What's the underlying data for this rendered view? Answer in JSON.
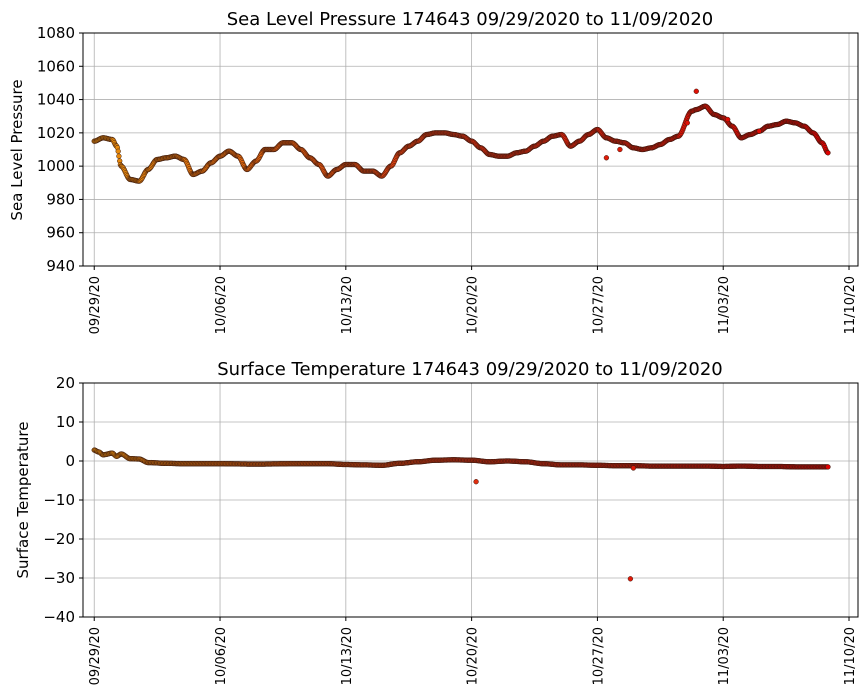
{
  "chart_data": [
    {
      "type": "scatter",
      "title": "Sea Level Pressure 174643  09/29/2020 to 11/09/2020",
      "xlabel": "",
      "ylabel": "Sea Level Pressure",
      "ylim": [
        940,
        1080
      ],
      "yticks": [
        940,
        960,
        980,
        1000,
        1020,
        1040,
        1060,
        1080
      ],
      "xlim": [
        "09/28/20 09:00",
        "11/10/20 12:00"
      ],
      "xtick_labels": [
        "09/29/20",
        "10/06/20",
        "10/13/20",
        "10/20/20",
        "10/27/20",
        "11/03/20",
        "11/10/20"
      ],
      "grid": true,
      "color_gradient": [
        "#e8900c",
        "#e03010",
        "#e00000"
      ],
      "series": [
        {
          "points": [
            [
              "09/29 00:00",
              1015
            ],
            [
              "09/29 12:00",
              1017
            ],
            [
              "09/30 00:00",
              1016
            ],
            [
              "09/30 06:00",
              1012
            ],
            [
              "09/30 12:00",
              1000
            ],
            [
              "10/01 00:00",
              992
            ],
            [
              "10/01 12:00",
              991
            ],
            [
              "10/02 00:00",
              998
            ],
            [
              "10/02 12:00",
              1004
            ],
            [
              "10/03 00:00",
              1005
            ],
            [
              "10/03 12:00",
              1006
            ],
            [
              "10/04 00:00",
              1004
            ],
            [
              "10/04 12:00",
              995
            ],
            [
              "10/05 00:00",
              997
            ],
            [
              "10/05 12:00",
              1002
            ],
            [
              "10/06 00:00",
              1006
            ],
            [
              "10/06 12:00",
              1009
            ],
            [
              "10/07 00:00",
              1006
            ],
            [
              "10/07 12:00",
              998
            ],
            [
              "10/08 00:00",
              1003
            ],
            [
              "10/08 12:00",
              1010
            ],
            [
              "10/09 00:00",
              1010
            ],
            [
              "10/09 12:00",
              1014
            ],
            [
              "10/10 00:00",
              1014
            ],
            [
              "10/10 12:00",
              1010
            ],
            [
              "10/11 00:00",
              1005
            ],
            [
              "10/11 12:00",
              1001
            ],
            [
              "10/12 00:00",
              994
            ],
            [
              "10/12 12:00",
              998
            ],
            [
              "10/13 00:00",
              1001
            ],
            [
              "10/13 12:00",
              1001
            ],
            [
              "10/14 00:00",
              997
            ],
            [
              "10/14 12:00",
              997
            ],
            [
              "10/15 00:00",
              994
            ],
            [
              "10/15 12:00",
              1000
            ],
            [
              "10/16 00:00",
              1008
            ],
            [
              "10/16 12:00",
              1012
            ],
            [
              "10/17 00:00",
              1015
            ],
            [
              "10/17 12:00",
              1019
            ],
            [
              "10/18 00:00",
              1020
            ],
            [
              "10/18 12:00",
              1020
            ],
            [
              "10/19 00:00",
              1019
            ],
            [
              "10/19 12:00",
              1018
            ],
            [
              "10/20 00:00",
              1015
            ],
            [
              "10/20 12:00",
              1011
            ],
            [
              "10/21 00:00",
              1007
            ],
            [
              "10/21 12:00",
              1006
            ],
            [
              "10/22 00:00",
              1006
            ],
            [
              "10/22 12:00",
              1008
            ],
            [
              "10/23 00:00",
              1009
            ],
            [
              "10/23 12:00",
              1012
            ],
            [
              "10/24 00:00",
              1015
            ],
            [
              "10/24 12:00",
              1018
            ],
            [
              "10/25 00:00",
              1019
            ],
            [
              "10/25 12:00",
              1012
            ],
            [
              "10/26 00:00",
              1015
            ],
            [
              "10/26 12:00",
              1019
            ],
            [
              "10/27 00:00",
              1022
            ],
            [
              "10/27 12:00",
              1017
            ],
            [
              "10/28 00:00",
              1015
            ],
            [
              "10/28 12:00",
              1014
            ],
            [
              "10/29 00:00",
              1011
            ],
            [
              "10/29 12:00",
              1010
            ],
            [
              "10/30 00:00",
              1011
            ],
            [
              "10/30 12:00",
              1013
            ],
            [
              "10/31 00:00",
              1016
            ],
            [
              "10/31 12:00",
              1018
            ],
            [
              "11/01 06:00",
              1033
            ],
            [
              "11/01 12:00",
              1034
            ],
            [
              "11/02 00:00",
              1036
            ],
            [
              "11/02 12:00",
              1031
            ],
            [
              "11/03 00:00",
              1029
            ],
            [
              "11/03 12:00",
              1024
            ],
            [
              "11/04 00:00",
              1017
            ],
            [
              "11/04 12:00",
              1019
            ],
            [
              "11/05 00:00",
              1021
            ],
            [
              "11/05 12:00",
              1024
            ],
            [
              "11/06 00:00",
              1025
            ],
            [
              "11/06 12:00",
              1027
            ],
            [
              "11/07 00:00",
              1026
            ],
            [
              "11/07 12:00",
              1024
            ],
            [
              "11/08 00:00",
              1020
            ],
            [
              "11/08 12:00",
              1014
            ],
            [
              "11/08 20:00",
              1008
            ]
          ],
          "outliers": [
            [
              "10/27 12:00",
              1005
            ],
            [
              "10/28 06:00",
              1010
            ],
            [
              "11/01 00:00",
              1026
            ],
            [
              "11/01 12:00",
              1045
            ],
            [
              "11/03 06:00",
              1028
            ],
            [
              "11/05 00:00",
              1021
            ]
          ]
        }
      ]
    },
    {
      "type": "scatter",
      "title": "Surface Temperature 174643  09/29/2020 to 11/09/2020",
      "xlabel": "",
      "ylabel": "Surface Temperature",
      "ylim": [
        -40,
        20
      ],
      "yticks": [
        -40,
        -30,
        -20,
        -10,
        0,
        10,
        20
      ],
      "xlim": [
        "09/28/20 09:00",
        "11/10/20 12:00"
      ],
      "xtick_labels": [
        "09/29/20",
        "10/06/20",
        "10/13/20",
        "10/20/20",
        "10/27/20",
        "11/03/20",
        "11/10/20"
      ],
      "grid": true,
      "color_gradient": [
        "#e8900c",
        "#e03010",
        "#e00000"
      ],
      "series": [
        {
          "points": [
            [
              "09/29 00:00",
              2.8
            ],
            [
              "09/29 06:00",
              2.3
            ],
            [
              "09/29 12:00",
              1.6
            ],
            [
              "09/30 00:00",
              2.0
            ],
            [
              "09/30 06:00",
              1.2
            ],
            [
              "09/30 12:00",
              1.8
            ],
            [
              "10/01 00:00",
              0.6
            ],
            [
              "10/01 12:00",
              0.5
            ],
            [
              "10/02 00:00",
              -0.4
            ],
            [
              "10/03 00:00",
              -0.6
            ],
            [
              "10/04 00:00",
              -0.7
            ],
            [
              "10/06 00:00",
              -0.7
            ],
            [
              "10/08 00:00",
              -0.8
            ],
            [
              "10/10 00:00",
              -0.7
            ],
            [
              "10/12 00:00",
              -0.7
            ],
            [
              "10/13 00:00",
              -0.9
            ],
            [
              "10/14 00:00",
              -1.0
            ],
            [
              "10/15 00:00",
              -1.1
            ],
            [
              "10/16 00:00",
              -0.6
            ],
            [
              "10/17 00:00",
              -0.2
            ],
            [
              "10/18 00:00",
              0.2
            ],
            [
              "10/19 00:00",
              0.3
            ],
            [
              "10/20 00:00",
              0.2
            ],
            [
              "10/21 00:00",
              -0.2
            ],
            [
              "10/22 00:00",
              0.0
            ],
            [
              "10/23 00:00",
              -0.2
            ],
            [
              "10/24 00:00",
              -0.7
            ],
            [
              "10/25 00:00",
              -1.0
            ],
            [
              "10/26 00:00",
              -1.0
            ],
            [
              "10/27 00:00",
              -1.1
            ],
            [
              "10/28 00:00",
              -1.2
            ],
            [
              "10/29 00:00",
              -1.2
            ],
            [
              "10/30 00:00",
              -1.3
            ],
            [
              "10/31 00:00",
              -1.3
            ],
            [
              "11/01 00:00",
              -1.3
            ],
            [
              "11/02 00:00",
              -1.3
            ],
            [
              "11/03 00:00",
              -1.4
            ],
            [
              "11/04 00:00",
              -1.3
            ],
            [
              "11/05 00:00",
              -1.4
            ],
            [
              "11/06 00:00",
              -1.4
            ],
            [
              "11/07 00:00",
              -1.5
            ],
            [
              "11/08 00:00",
              -1.5
            ],
            [
              "11/08 20:00",
              -1.5
            ]
          ],
          "outliers": [
            [
              "10/20 06:00",
              -5.3
            ],
            [
              "10/28 20:00",
              -30.2
            ],
            [
              "10/29 00:00",
              -1.8
            ]
          ]
        }
      ]
    }
  ]
}
